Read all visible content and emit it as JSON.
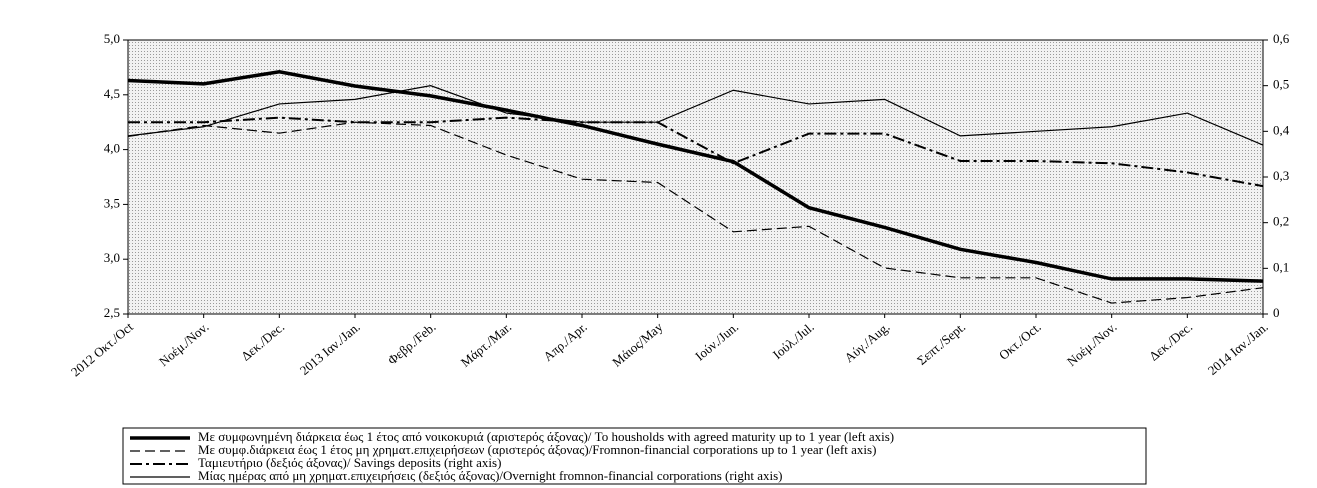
{
  "chart_data": {
    "type": "line",
    "categories": [
      "2012 Οκτ./Oct",
      "Νοέμ./Nov.",
      "Δεκ./Dec.",
      "2013 Ιαν./Jan.",
      "Φεβρ./Feb.",
      "Μάρτ./Mar.",
      "Απρ./Apr.",
      "Μάιος/May",
      "Ιούν./Jun.",
      "Ιούλ./Jul.",
      "Αύγ./Aug.",
      "Σεπτ./Sept.",
      "Οκτ./Oct.",
      "Νοέμ./Nov.",
      "Δεκ./Dec.",
      "2014 Ιαν./Jan."
    ],
    "ylim": [
      2.5,
      5.0
    ],
    "yticks": [
      {
        "value": 2.5,
        "label": "2,5"
      },
      {
        "value": 3.0,
        "label": "3,0"
      },
      {
        "value": 3.5,
        "label": "3,5"
      },
      {
        "value": 4.0,
        "label": "4,0"
      },
      {
        "value": 4.5,
        "label": "4,5"
      },
      {
        "value": 5.0,
        "label": "5,0"
      }
    ],
    "y2lim": [
      0,
      0.6
    ],
    "y2ticks": [
      0,
      {
        "value": 0.1,
        "label": "0,1"
      },
      {
        "value": 0.2,
        "label": "0,2"
      },
      {
        "value": 0.3,
        "label": "0,3"
      },
      {
        "value": 0.4,
        "label": "0,4"
      },
      {
        "value": 0.5,
        "label": "0,5"
      },
      {
        "value": 0.6,
        "label": "0,6"
      }
    ],
    "series": [
      {
        "name": "Με συμφωνημένη διάρκεια έως 1 έτος από νοικοκυριά (αριστερός άξονας)/ To housholds with agreed maturity up to 1 year (left axis)",
        "color": "#000000",
        "style": "solid",
        "width": 3.5,
        "axis": "y",
        "values": [
          4.63,
          4.6,
          4.71,
          4.58,
          4.49,
          4.36,
          4.22,
          4.05,
          3.89,
          3.47,
          3.29,
          3.09,
          2.97,
          2.82,
          2.82,
          2.8
        ]
      },
      {
        "name": "Με συμφ.διάρκεια έως 1 έτος μη χρηματ.επιχειρήσεων (αριστερός άξονας)/Fromnon-financial corporations up to 1 year (left axis)",
        "color": "#000000",
        "style": "dashed",
        "width": 1.2,
        "axis": "y",
        "values": [
          4.12,
          4.22,
          4.15,
          4.25,
          4.22,
          3.95,
          3.73,
          3.7,
          3.25,
          3.3,
          2.92,
          2.83,
          2.83,
          2.6,
          2.65,
          2.74
        ]
      },
      {
        "name": "Ταμιευτήριο (δεξιός άξονας)/ Savings deposits (right axis)",
        "color": "#000000",
        "style": "dashdot",
        "width": 2,
        "axis": "y2",
        "values": [
          0.42,
          0.42,
          0.43,
          0.42,
          0.42,
          0.43,
          0.42,
          0.42,
          0.33,
          0.395,
          0.395,
          0.335,
          0.335,
          0.33,
          0.31,
          0.28
        ]
      },
      {
        "name": "Μίας ημέρας από μη χρηματ.επιχειρήσεις (δεξιός άξονας)/Overnight fromnon-financial corporations (right axis)",
        "color": "#000000",
        "style": "solid",
        "width": 1.2,
        "axis": "y2",
        "values": [
          0.39,
          0.41,
          0.46,
          0.47,
          0.5,
          0.44,
          0.42,
          0.42,
          0.49,
          0.46,
          0.47,
          0.39,
          0.4,
          0.41,
          0.44,
          0.37
        ]
      }
    ]
  }
}
